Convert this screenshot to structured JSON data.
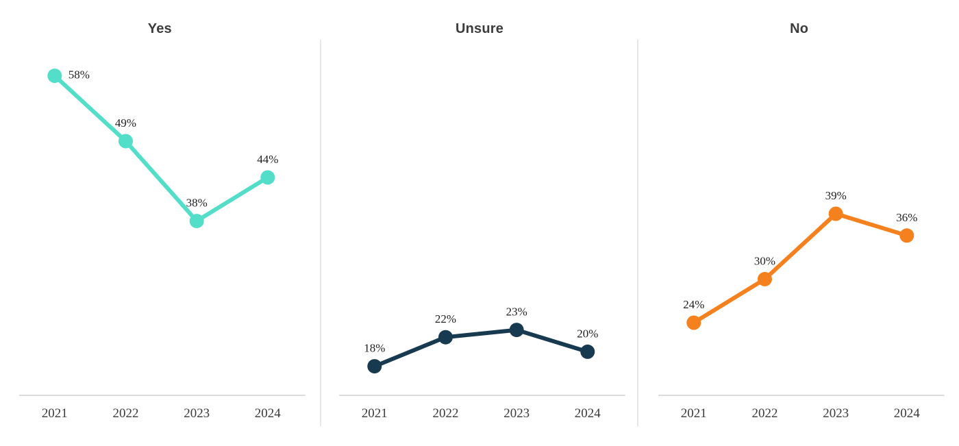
{
  "chart_data": {
    "type": "line",
    "layout": "small_multiples",
    "categories": [
      "2021",
      "2022",
      "2023",
      "2024"
    ],
    "series": [
      {
        "name": "Yes",
        "color": "#53DEC9",
        "values": [
          58,
          49,
          38,
          44
        ],
        "labels": [
          "58%",
          "49%",
          "38%",
          "44%"
        ]
      },
      {
        "name": "Unsure",
        "color": "#173A50",
        "values": [
          18,
          22,
          23,
          20
        ],
        "labels": [
          "18%",
          "22%",
          "23%",
          "20%"
        ]
      },
      {
        "name": "No",
        "color": "#F5811E",
        "values": [
          24,
          30,
          39,
          36
        ],
        "labels": [
          "24%",
          "30%",
          "39%",
          "36%"
        ]
      }
    ],
    "value_suffix": "%",
    "ylim": [
      14,
      63
    ],
    "grid": false,
    "legend": "none",
    "data_label_position": "above",
    "data_label_overrides": [
      {
        "series": "Yes",
        "index": 0,
        "position": "right"
      }
    ]
  },
  "styles": {
    "background": "#FFFFFF",
    "title_color": "#3C3C3C",
    "tick_label_color": "#3A3A3A",
    "value_label_color": "#1F1F1F",
    "axis_line_color": "#DCDCDC",
    "separator_color": "#E6E6E6"
  }
}
